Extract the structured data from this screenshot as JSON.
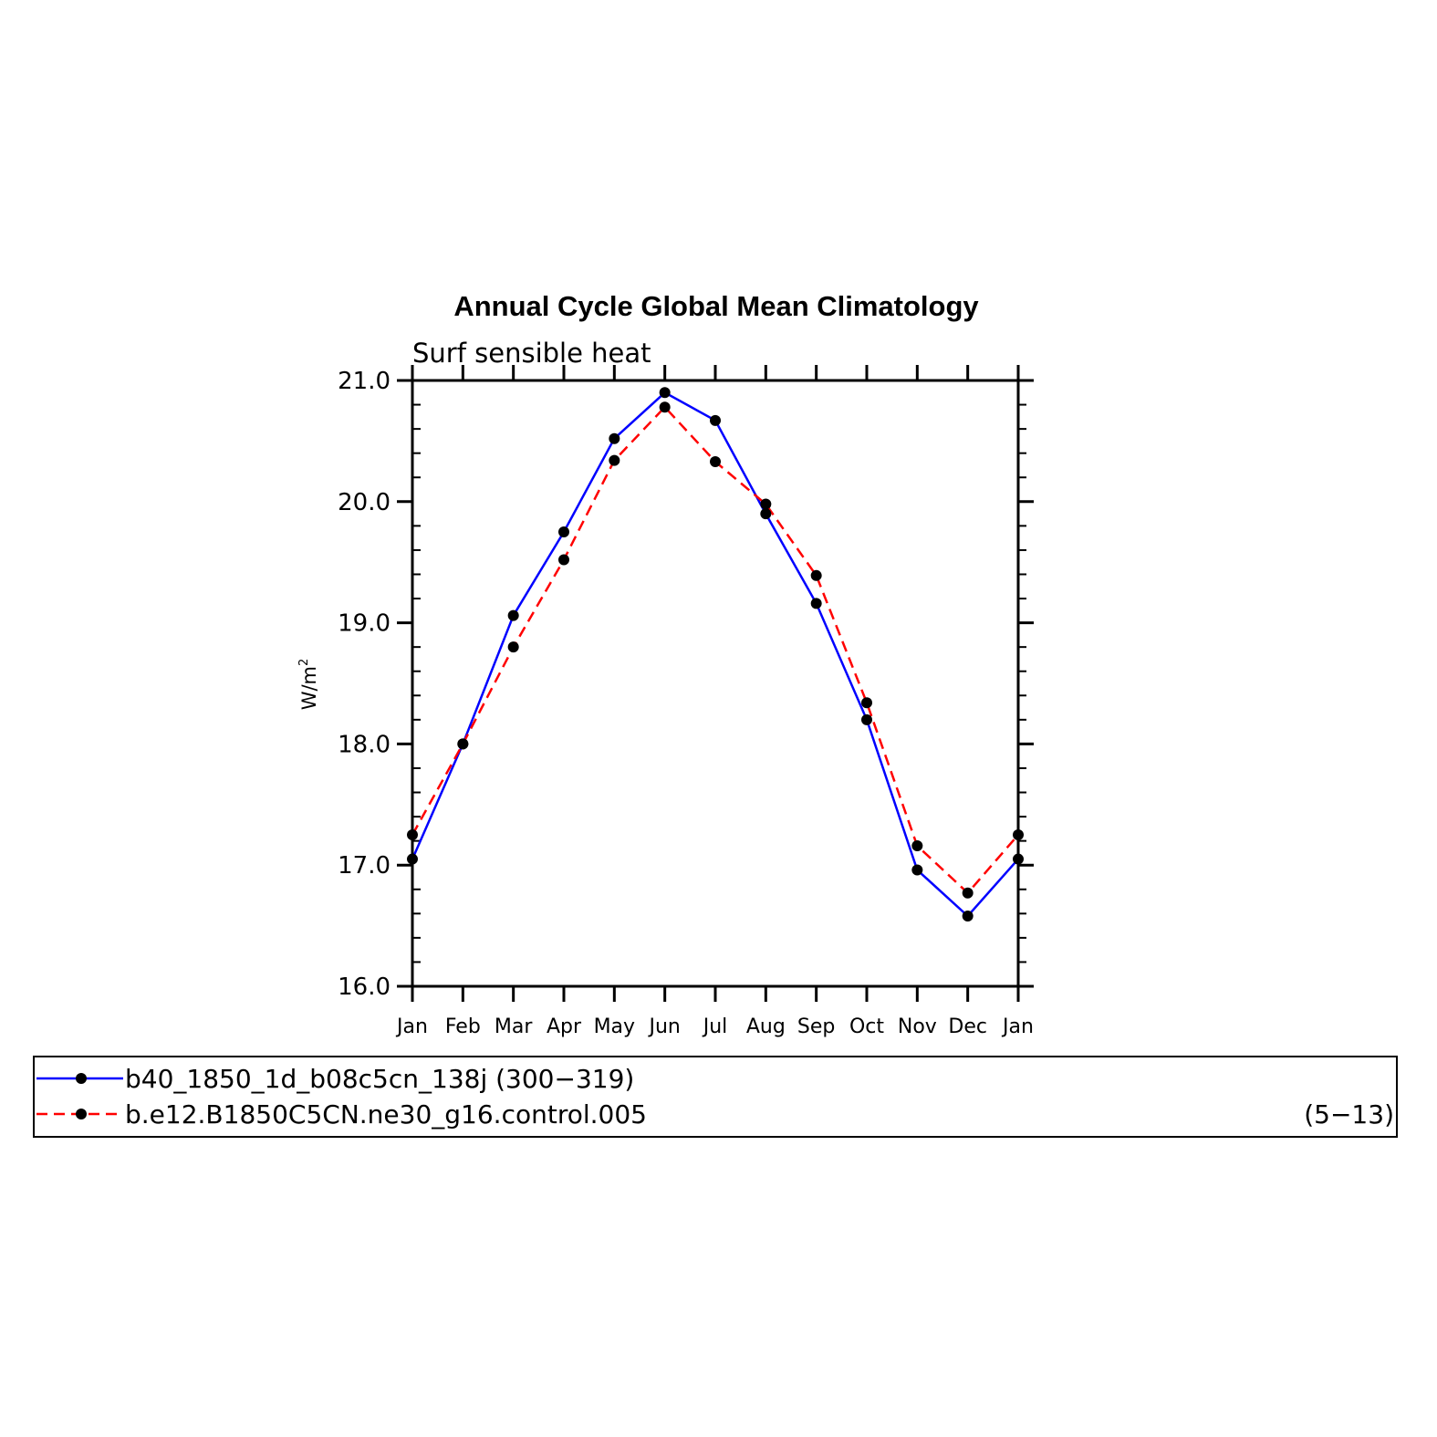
{
  "chart_data": {
    "type": "line",
    "title": "Annual Cycle Global Mean Climatology",
    "subtitle": "Surf sensible heat",
    "ylabel": "W/m",
    "ylabel_sup": "2",
    "xlabel": "",
    "categories": [
      "Jan",
      "Feb",
      "Mar",
      "Apr",
      "May",
      "Jun",
      "Jul",
      "Aug",
      "Sep",
      "Oct",
      "Nov",
      "Dec",
      "Jan"
    ],
    "ylim": [
      16.0,
      21.0
    ],
    "yticks": [
      "16.0",
      "17.0",
      "18.0",
      "19.0",
      "20.0",
      "21.0"
    ],
    "grid": false,
    "legend_position": "bottom",
    "series": [
      {
        "name": "b40_1850_1d_b08c5cn_138j (300−319)",
        "color": "#0000ff",
        "dash": "solid",
        "values": [
          17.05,
          18.0,
          19.06,
          19.75,
          20.52,
          20.9,
          20.67,
          19.9,
          19.16,
          18.2,
          16.96,
          16.58,
          17.05
        ]
      },
      {
        "name": "b.e12.B1850C5CN.ne30_g16.control.005",
        "name_suffix": "(5−13)",
        "color": "#ff0000",
        "dash": "dashed",
        "values": [
          17.25,
          18.0,
          18.8,
          19.52,
          20.34,
          20.78,
          20.33,
          19.98,
          19.39,
          18.34,
          17.16,
          16.77,
          17.25
        ]
      }
    ],
    "marker_color": "#000000"
  }
}
